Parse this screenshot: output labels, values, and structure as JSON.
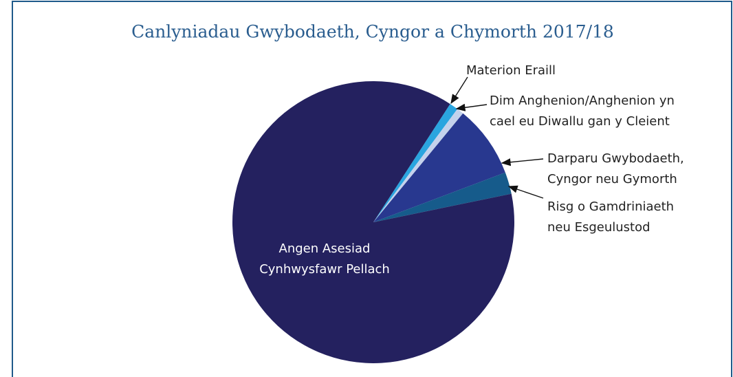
{
  "chart_data": {
    "type": "pie",
    "title": "Canlyniadau Gwybodaeth, Cyngor a Chymorth 2017/18",
    "categories": [
      [
        "Materion Eraill"
      ],
      [
        "Dim Anghenion/Anghenion yn",
        "cael eu Diwallu gan y Cleient"
      ],
      [
        "Darparu Gwybodaeth,",
        "Cyngor neu Gymorth"
      ],
      [
        "Risg o Gamdriniaeth",
        "neu Esgeulustod"
      ],
      [
        "Angen Asesiad",
        "Cynhwysfawr Pellach"
      ]
    ],
    "values": [
      1.0,
      0.8,
      8.3,
      2.5,
      87.4
    ],
    "colors": [
      "#2aa5df",
      "#c4d2ec",
      "#28388f",
      "#165b8b",
      "#24215f"
    ]
  }
}
